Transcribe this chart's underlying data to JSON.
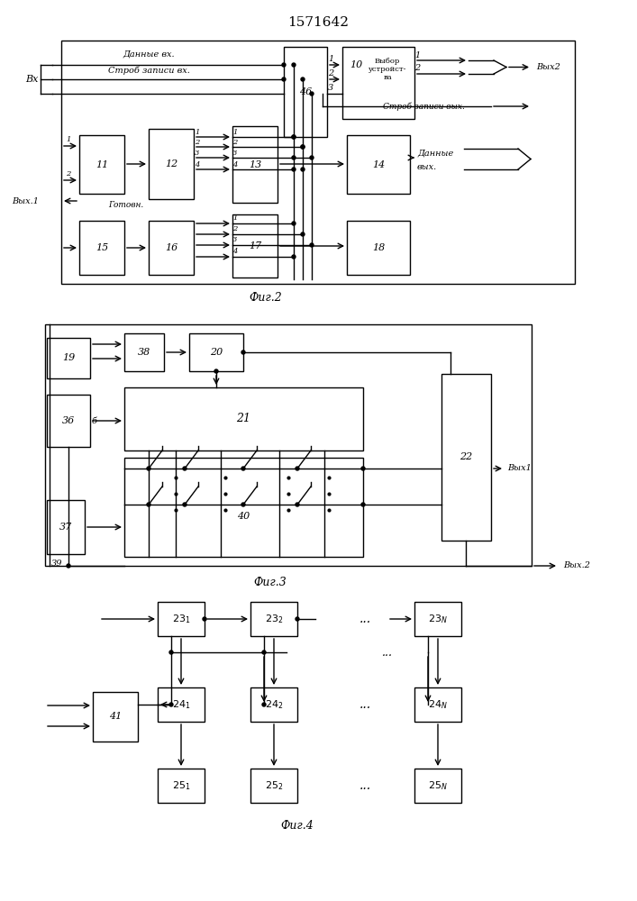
{
  "title": "1571642",
  "bg_color": "#ffffff",
  "line_color": "#000000",
  "fig2_label": "Фиг.2",
  "fig3_label": "Фиг.3",
  "fig4_label": "Фиг.4"
}
